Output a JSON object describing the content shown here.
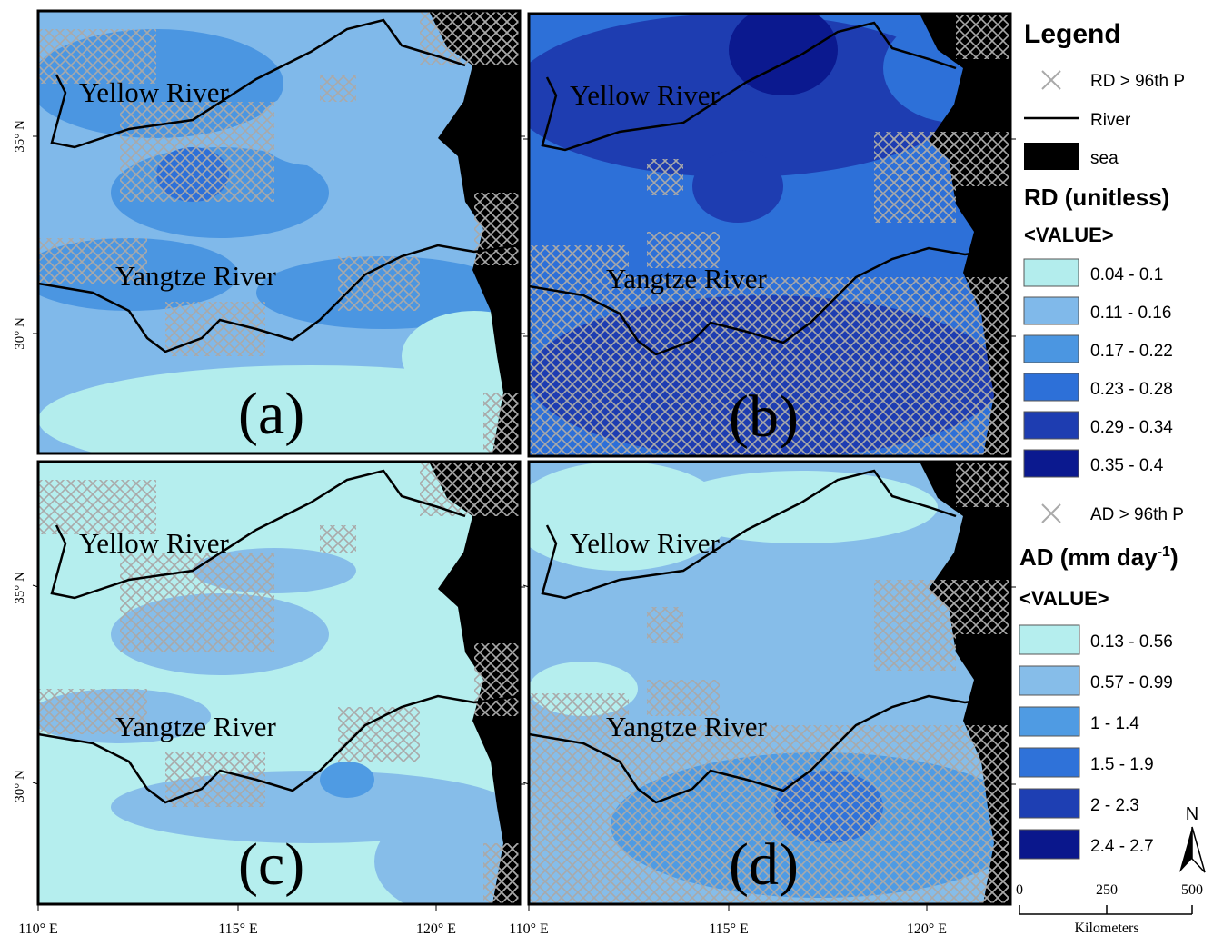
{
  "panels": [
    {
      "label": "(a)",
      "rivers": [
        "Yellow River",
        "Yangtze River"
      ]
    },
    {
      "label": "(b)",
      "rivers": [
        "Yellow River",
        "Yangtze River"
      ]
    },
    {
      "label": "(c)",
      "rivers": [
        "Yellow River",
        "Yangtze River"
      ]
    },
    {
      "label": "(d)",
      "rivers": [
        "Yellow River",
        "Yangtze River"
      ]
    }
  ],
  "latitude_labels": [
    "35° N",
    "30° N"
  ],
  "longitude_labels": [
    "110° E",
    "115° E",
    "120° E"
  ],
  "legend": {
    "title": "Legend",
    "symbols": [
      "RD > 96th P",
      "River",
      "sea"
    ],
    "rd": {
      "title": "RD (unitless)",
      "subtitle": "<VALUE>",
      "classes": [
        {
          "label": "0.04 - 0.1",
          "color": "#b3eded"
        },
        {
          "label": "0.11 - 0.16",
          "color": "#80b9ea"
        },
        {
          "label": "0.17 - 0.22",
          "color": "#4b96e1"
        },
        {
          "label": "0.23 - 0.28",
          "color": "#2d70d8"
        },
        {
          "label": "0.29 - 0.34",
          "color": "#1e3db1"
        },
        {
          "label": "0.35 - 0.4",
          "color": "#0b198f"
        }
      ]
    },
    "ad_hatch": "AD > 96th P",
    "ad": {
      "title": "AD (mm day",
      "title_sup": "-1",
      "title_end": ")",
      "subtitle": "<VALUE>",
      "classes": [
        {
          "label": "0.13 - 0.56",
          "color": "#b5eeee"
        },
        {
          "label": "0.57 - 0.99",
          "color": "#86bde9"
        },
        {
          "label": "1 - 1.4",
          "color": "#4f9be3"
        },
        {
          "label": "1.5 - 1.9",
          "color": "#2f72d9"
        },
        {
          "label": "2 - 2.3",
          "color": "#1e3fb3"
        },
        {
          "label": "2.4 - 2.7",
          "color": "#0a178c"
        }
      ]
    }
  },
  "scale_bar": {
    "labels": [
      "0",
      "250",
      "500"
    ],
    "unit": "Kilometers"
  },
  "north": "N"
}
